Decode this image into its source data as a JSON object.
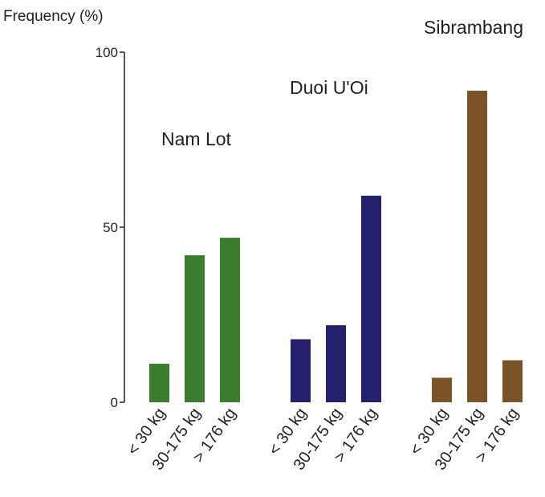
{
  "chart_data": {
    "type": "bar",
    "ylabel": "Frequency (%)",
    "ylim": [
      0,
      100
    ],
    "yticks": [
      0,
      50,
      100
    ],
    "grid": false,
    "groups": [
      {
        "name": "Nam Lot",
        "color": "#3a7d2c",
        "categories": [
          "< 30 kg",
          "30-175 kg",
          "> 176 kg"
        ],
        "values": [
          11,
          42,
          47
        ]
      },
      {
        "name": "Duoi U'Oi",
        "color": "#24206e",
        "categories": [
          "< 30 kg",
          "30-175 kg",
          "> 176 kg"
        ],
        "values": [
          18,
          22,
          59
        ]
      },
      {
        "name": "Sibrambang",
        "color": "#7b5327",
        "categories": [
          "< 30 kg",
          "30-175 kg",
          "> 176 kg"
        ],
        "values": [
          7,
          89,
          12
        ]
      }
    ]
  }
}
